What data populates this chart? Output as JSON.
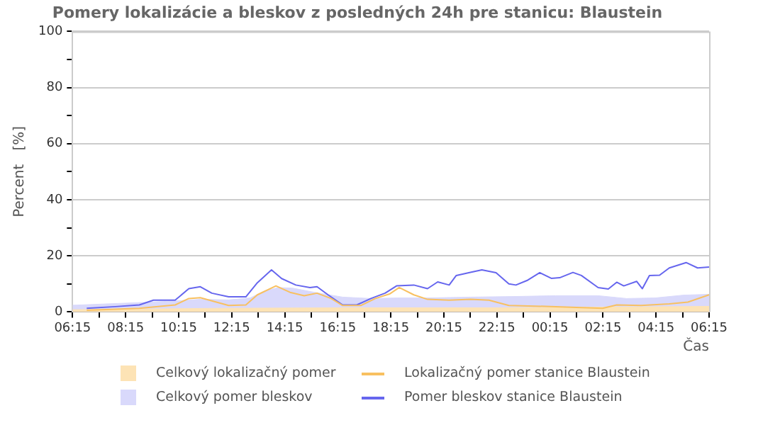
{
  "chart_data": {
    "type": "line",
    "title": "Pomery lokalizácie a bleskov z posledných 24h pre stanicu: Blaustein",
    "xlabel": "Čas",
    "ylabel": "Percent   [%]",
    "xlim": [
      "--01-01T06:15",
      "--01-02T06:15"
    ],
    "xticks": [
      {
        "value": "--01-01T06:15",
        "label": "06:15"
      },
      {
        "value": "--01-01T07:15",
        "label": null
      },
      {
        "value": "--01-01T08:15",
        "label": "08:15"
      },
      {
        "value": "--01-01T09:15",
        "label": null
      },
      {
        "value": "--01-01T10:15",
        "label": "10:15"
      },
      {
        "value": "--01-01T11:15",
        "label": null
      },
      {
        "value": "--01-01T12:15",
        "label": "12:15"
      },
      {
        "value": "--01-01T13:15",
        "label": null
      },
      {
        "value": "--01-01T14:15",
        "label": "14:15"
      },
      {
        "value": "--01-01T15:15",
        "label": null
      },
      {
        "value": "--01-01T16:15",
        "label": "16:15"
      },
      {
        "value": "--01-01T17:15",
        "label": null
      },
      {
        "value": "--01-01T18:15",
        "label": "18:15"
      },
      {
        "value": "--01-01T19:15",
        "label": null
      },
      {
        "value": "--01-01T20:15",
        "label": "20:15"
      },
      {
        "value": "--01-01T21:15",
        "label": null
      },
      {
        "value": "--01-01T22:15",
        "label": "22:15"
      },
      {
        "value": "--01-01T23:15",
        "label": null
      },
      {
        "value": "--01-02T00:15",
        "label": "00:15"
      },
      {
        "value": "--01-02T01:15",
        "label": null
      },
      {
        "value": "--01-02T02:15",
        "label": "02:15"
      },
      {
        "value": "--01-02T03:15",
        "label": null
      },
      {
        "value": "--01-02T04:15",
        "label": "04:15"
      },
      {
        "value": "--01-02T05:15",
        "label": null
      },
      {
        "value": "--01-02T06:15",
        "label": "06:15"
      }
    ],
    "ylim": [
      0,
      100
    ],
    "yticks": [
      0,
      {
        "value": 10,
        "label": null
      },
      20,
      {
        "value": 30,
        "label": null
      },
      40,
      {
        "value": 50,
        "label": null
      },
      60,
      {
        "value": 70,
        "label": null
      },
      80,
      {
        "value": 90,
        "label": null
      },
      100
    ],
    "grid": "y",
    "legend": "bottom",
    "series": [
      {
        "name": "Celkový lokalizačný pomer",
        "type": "area",
        "color": "#fde3b5",
        "x": [
          "--01-01T06:15",
          "--01-01T11:36",
          "--01-01T16:58",
          "--01-01T22:19",
          "--01-02T03:41",
          "--01-02T06:15"
        ],
        "values": [
          0.8,
          1.3,
          1.5,
          1.5,
          1.8,
          2
        ]
      },
      {
        "name": "Celkový pomer bleskov",
        "type": "area",
        "color": "#d9d9fb",
        "x": [
          "--01-01T06:15",
          "--01-01T07:35",
          "--01-01T08:56",
          "--01-01T10:16",
          "--01-01T11:04",
          "--01-01T12:08",
          "--01-01T12:57",
          "--01-01T13:29",
          "--01-01T14:01",
          "--01-01T14:33",
          "--01-01T15:22",
          "--01-01T16:26",
          "--01-01T17:30",
          "--01-01T18:34",
          "--01-01T19:38",
          "--01-01T21:15",
          "--01-01T22:52",
          "--01-02T00:28",
          "--01-02T02:04",
          "--01-02T03:08",
          "--01-02T04:13",
          "--01-02T05:17",
          "--01-02T06:15"
        ],
        "values": [
          2.4,
          2.9,
          3.4,
          4,
          4.5,
          4.3,
          5,
          7.5,
          8.7,
          8.5,
          7,
          5.3,
          4.8,
          5,
          5,
          5.3,
          5.5,
          5.8,
          5.8,
          4.8,
          5,
          6,
          6.3
        ]
      },
      {
        "name": "Lokalizačný pomer stanice Blaustein",
        "type": "line",
        "color": "#f8c060",
        "x": [
          "--01-01T06:47",
          "--01-01T08:46",
          "--01-01T10:07",
          "--01-01T10:38",
          "--01-01T11:04",
          "--01-01T12:08",
          "--01-01T12:47",
          "--01-01T13:13",
          "--01-01T13:55",
          "--01-01T14:27",
          "--01-01T14:59",
          "--01-01T15:28",
          "--01-01T16:00",
          "--01-01T16:26",
          "--01-01T17:07",
          "--01-01T17:40",
          "--01-01T18:12",
          "--01-01T18:34",
          "--01-01T19:07",
          "--01-01T19:38",
          "--01-01T20:27",
          "--01-01T21:15",
          "--01-01T21:57",
          "--01-01T22:42",
          "--01-02T00:28",
          "--01-02T02:14",
          "--01-02T02:46",
          "--01-02T03:41",
          "--01-02T04:45",
          "--01-02T05:27",
          "--01-02T06:15"
        ],
        "values": [
          0.6,
          1.3,
          2.5,
          4.8,
          5.1,
          2.3,
          2.5,
          6.1,
          9.3,
          7,
          5.8,
          6.7,
          4.8,
          2.3,
          2.3,
          4.8,
          6.4,
          8.7,
          6.1,
          4.5,
          4.2,
          4.5,
          4.2,
          2.3,
          1.9,
          1.3,
          2.5,
          2.3,
          2.9,
          3.5,
          6.1
        ]
      },
      {
        "name": "Pomer bleskov stanice Blaustein",
        "type": "line",
        "color": "#6666ee",
        "x": [
          "--01-01T06:47",
          "--01-01T07:52",
          "--01-01T08:46",
          "--01-01T09:18",
          "--01-01T10:07",
          "--01-01T10:38",
          "--01-01T11:04",
          "--01-01T11:30",
          "--01-01T12:08",
          "--01-01T12:47",
          "--01-01T13:13",
          "--01-01T13:45",
          "--01-01T14:08",
          "--01-01T14:40",
          "--01-01T15:12",
          "--01-01T15:28",
          "--01-01T15:53",
          "--01-01T16:26",
          "--01-01T16:58",
          "--01-01T17:30",
          "--01-01T18:02",
          "--01-01T18:28",
          "--01-01T19:07",
          "--01-01T19:38",
          "--01-01T20:01",
          "--01-01T20:27",
          "--01-01T20:43",
          "--01-01T21:15",
          "--01-01T21:41",
          "--01-01T22:13",
          "--01-01T22:42",
          "--01-01T22:58",
          "--01-01T23:23",
          "--01-01T23:52",
          "--01-02T00:18",
          "--01-02T00:37",
          "--01-02T01:07",
          "--01-02T01:26",
          "--01-02T02:04",
          "--01-02T02:27",
          "--01-02T02:46",
          "--01-02T03:02",
          "--01-02T03:31",
          "--01-02T03:44",
          "--01-02T04:00",
          "--01-02T04:23",
          "--01-02T04:45",
          "--01-02T05:23",
          "--01-02T05:49",
          "--01-02T06:15"
        ],
        "values": [
          1.3,
          1.9,
          2.5,
          4.2,
          4.2,
          8.3,
          9,
          6.7,
          5.4,
          5.4,
          10.4,
          15,
          11.9,
          9.6,
          8.7,
          9,
          6.1,
          2.5,
          2.5,
          4.8,
          6.7,
          9.3,
          9.6,
          8.3,
          10.7,
          9.6,
          13,
          14.1,
          15,
          14,
          10,
          9.6,
          11.2,
          14,
          12,
          12.2,
          14.1,
          13,
          8.7,
          8.2,
          10.6,
          9.3,
          10.9,
          8.3,
          13,
          13.1,
          15.7,
          17.6,
          15.7,
          16
        ]
      }
    ]
  }
}
